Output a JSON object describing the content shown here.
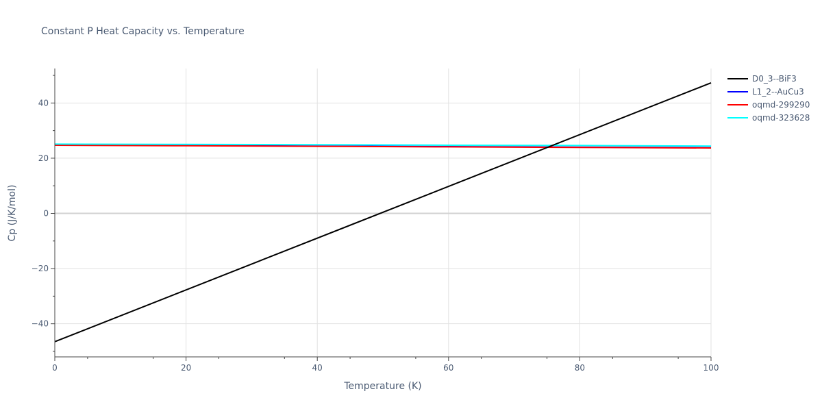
{
  "chart_data": {
    "type": "line",
    "title": "Constant P Heat Capacity vs. Temperature",
    "xlabel": "Temperature (K)",
    "ylabel": "Cp (J/K/mol)",
    "xlim": [
      0,
      100
    ],
    "ylim": [
      -52,
      52.5
    ],
    "x_ticks": [
      0,
      20,
      40,
      60,
      80,
      100
    ],
    "y_ticks": [
      -40,
      -20,
      0,
      20,
      40
    ],
    "y_tick_labels": [
      "−40",
      "−20",
      "0",
      "20",
      "40"
    ],
    "grid": true,
    "legend_position": "top-right",
    "series": [
      {
        "name": "D0_3--BiF3",
        "color": "#000000",
        "x": [
          0,
          100
        ],
        "y": [
          -46.5,
          47.3
        ]
      },
      {
        "name": "L1_2--AuCu3",
        "color": "#0000ff",
        "x": [
          0,
          20,
          40,
          60,
          80,
          100
        ],
        "y": [
          24.8,
          24.6,
          24.4,
          24.2,
          24.0,
          23.8
        ]
      },
      {
        "name": "oqmd-299290",
        "color": "#ff0000",
        "x": [
          0,
          20,
          40,
          60,
          80,
          100
        ],
        "y": [
          24.7,
          24.5,
          24.3,
          24.1,
          23.9,
          23.7
        ]
      },
      {
        "name": "oqmd-323628",
        "color": "#00ffff",
        "x": [
          0,
          20,
          40,
          60,
          80,
          100
        ],
        "y": [
          25.1,
          25.0,
          24.9,
          24.7,
          24.6,
          24.4
        ]
      }
    ]
  }
}
